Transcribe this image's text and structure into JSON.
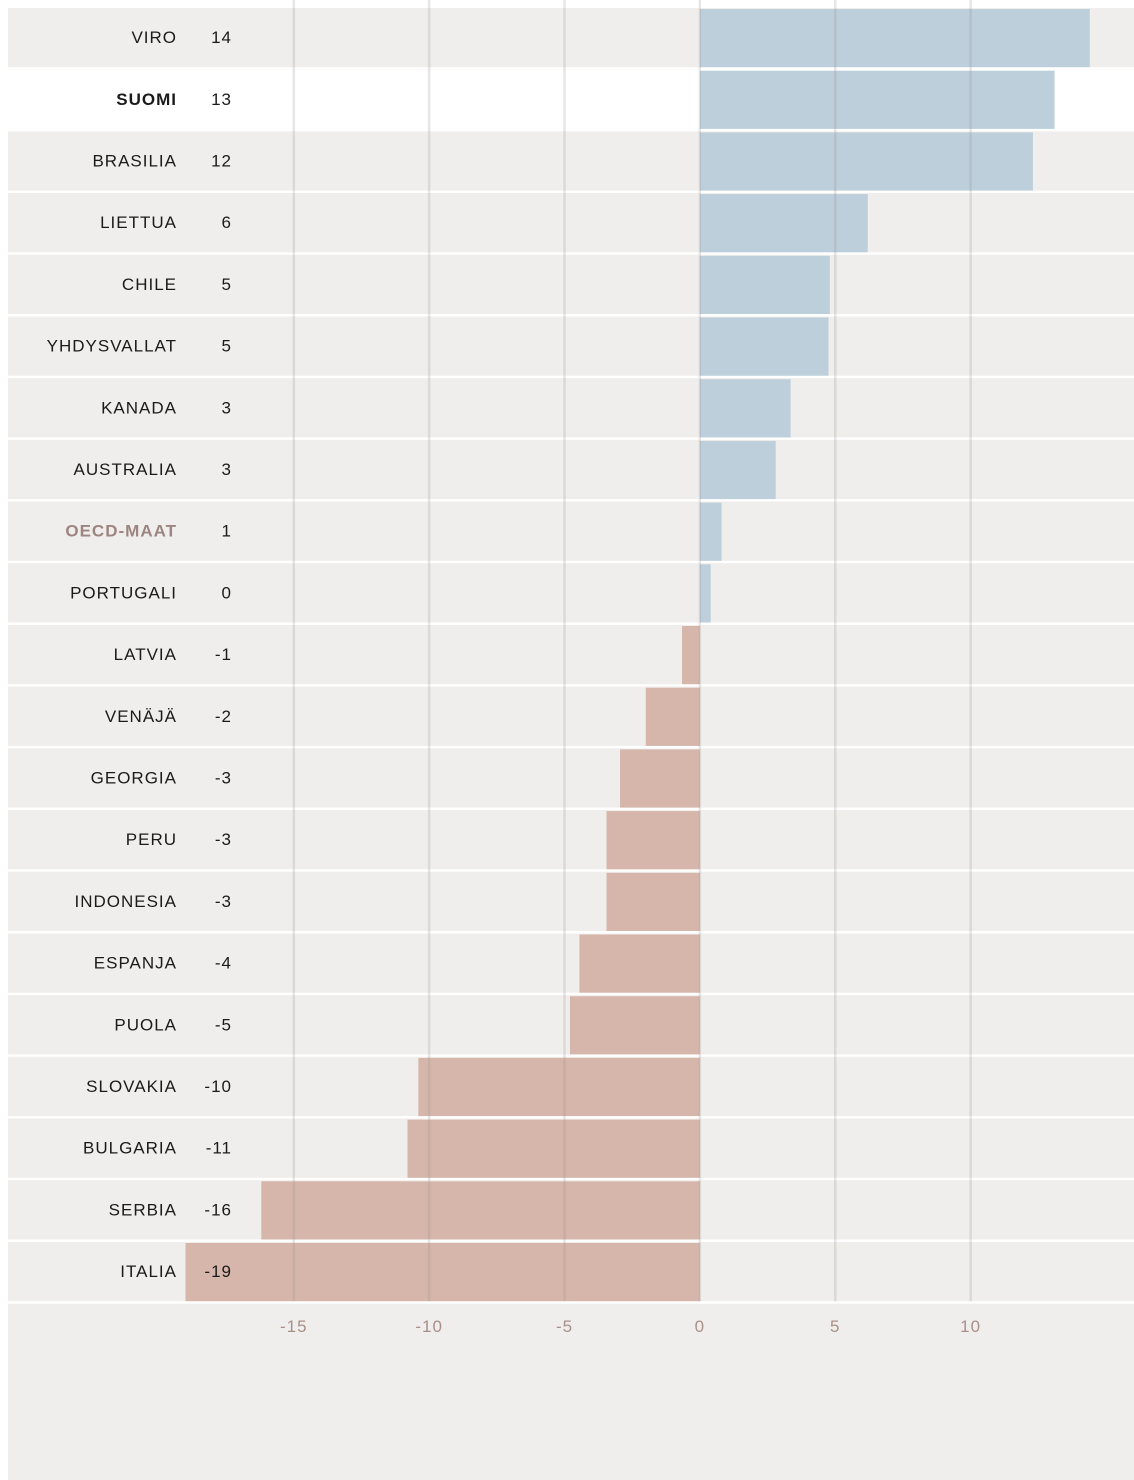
{
  "chart_data": {
    "type": "bar",
    "orientation": "horizontal",
    "categories": [
      "VIRO",
      "SUOMI",
      "BRASILIA",
      "LIETTUA",
      "CHILE",
      "YHDYSVALLAT",
      "KANADA",
      "AUSTRALIA",
      "OECD-MAAT",
      "PORTUGALI",
      "LATVIA",
      "VENÄJÄ",
      "GEORGIA",
      "PERU",
      "INDONESIA",
      "ESPANJA",
      "PUOLA",
      "SLOVAKIA",
      "BULGARIA",
      "SERBIA",
      "ITALIA"
    ],
    "values": [
      14.4,
      13.1,
      12.3,
      6.2,
      4.8,
      4.75,
      3.35,
      2.8,
      0.8,
      0.4,
      -0.66,
      -2.0,
      -2.95,
      -3.45,
      -3.45,
      -4.45,
      -4.8,
      -10.4,
      -10.8,
      -16.2,
      -19.0
    ],
    "value_labels": [
      "14",
      "13",
      "12",
      "6",
      "5",
      "5",
      "3",
      "3",
      "1",
      "0",
      "-1",
      "-2",
      "-3",
      "-3",
      "-3",
      "-4",
      "-5",
      "-10",
      "-11",
      "-16",
      "-19"
    ],
    "positive_color": "#bccfdb",
    "negative_color": "#d6b6aa",
    "highlight_rows": [
      1
    ],
    "reference_rows": [
      8
    ],
    "xlim": [
      -19,
      15
    ],
    "xticks": [
      -15,
      -10,
      -5,
      0,
      5,
      10
    ],
    "grid": true
  }
}
